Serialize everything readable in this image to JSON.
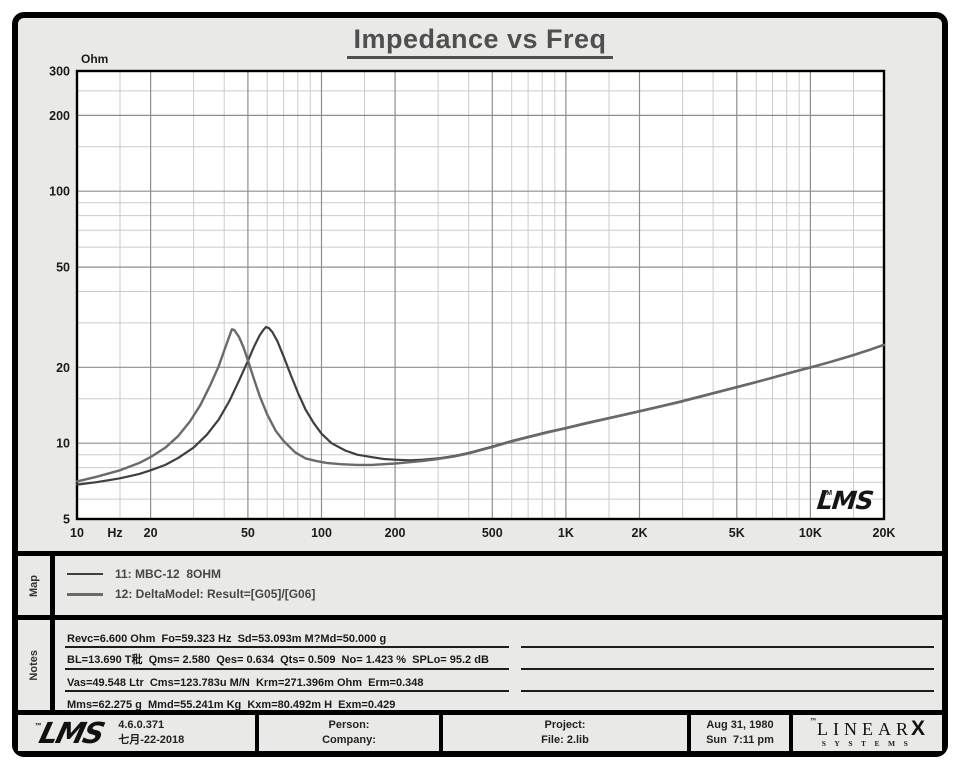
{
  "title": "Impedance vs Freq",
  "chart_data": {
    "type": "line",
    "title": "Impedance vs Freq",
    "ylabel": "Ohm",
    "x_unit": "Hz",
    "x_scale": "log",
    "y_scale": "log",
    "xlim": [
      10,
      20000
    ],
    "ylim": [
      5,
      300
    ],
    "grid": "on",
    "watermark": "LMS",
    "watermark_tm": "TM",
    "x_major_ticks": [
      {
        "f": 10,
        "label": "10"
      },
      {
        "f": 20,
        "label": "20"
      },
      {
        "f": 50,
        "label": "50"
      },
      {
        "f": 100,
        "label": "100"
      },
      {
        "f": 200,
        "label": "200"
      },
      {
        "f": 500,
        "label": "500"
      },
      {
        "f": 1000,
        "label": "1K"
      },
      {
        "f": 2000,
        "label": "2K"
      },
      {
        "f": 5000,
        "label": "5K"
      },
      {
        "f": 10000,
        "label": "10K"
      },
      {
        "f": 20000,
        "label": "20K"
      }
    ],
    "x_minor_ticks": [
      15,
      30,
      40,
      60,
      70,
      80,
      90,
      150,
      300,
      400,
      600,
      700,
      800,
      900,
      1500,
      3000,
      4000,
      6000,
      7000,
      8000,
      9000,
      15000
    ],
    "y_major_ticks": [
      {
        "v": 300,
        "label": "300"
      },
      {
        "v": 200,
        "label": "200"
      },
      {
        "v": 100,
        "label": "100"
      },
      {
        "v": 50,
        "label": "50"
      },
      {
        "v": 20,
        "label": "20"
      },
      {
        "v": 10,
        "label": "10"
      },
      {
        "v": 5,
        "label": "5"
      }
    ],
    "y_minor_ticks": [
      6,
      7,
      8,
      9,
      15,
      30,
      40,
      60,
      70,
      80,
      90,
      150,
      250
    ],
    "series": [
      {
        "id": "11",
        "name": "11: MBC-12  8OHM",
        "color": "#3f3f3f",
        "width": 2.2,
        "points": [
          [
            10,
            6.85
          ],
          [
            12,
            7.0
          ],
          [
            15,
            7.25
          ],
          [
            18,
            7.55
          ],
          [
            20,
            7.8
          ],
          [
            23,
            8.2
          ],
          [
            26,
            8.75
          ],
          [
            30,
            9.6
          ],
          [
            34,
            10.8
          ],
          [
            38,
            12.4
          ],
          [
            42,
            14.7
          ],
          [
            46,
            17.7
          ],
          [
            50,
            21.2
          ],
          [
            53,
            24.2
          ],
          [
            56,
            26.9
          ],
          [
            58,
            28.2
          ],
          [
            59.3,
            28.9
          ],
          [
            61,
            28.6
          ],
          [
            63,
            27.6
          ],
          [
            66,
            25.4
          ],
          [
            70,
            22.1
          ],
          [
            75,
            18.6
          ],
          [
            80,
            15.9
          ],
          [
            86,
            13.6
          ],
          [
            93,
            12.0
          ],
          [
            100,
            10.9
          ],
          [
            110,
            10.0
          ],
          [
            125,
            9.35
          ],
          [
            140,
            9.0
          ],
          [
            160,
            8.8
          ],
          [
            180,
            8.65
          ],
          [
            200,
            8.6
          ],
          [
            230,
            8.55
          ],
          [
            260,
            8.6
          ],
          [
            300,
            8.7
          ],
          [
            350,
            8.9
          ],
          [
            400,
            9.15
          ],
          [
            500,
            9.7
          ],
          [
            600,
            10.2
          ],
          [
            700,
            10.6
          ],
          [
            850,
            11.1
          ],
          [
            1000,
            11.5
          ],
          [
            1200,
            12.0
          ],
          [
            1500,
            12.6
          ],
          [
            2000,
            13.4
          ],
          [
            2500,
            14.1
          ],
          [
            3000,
            14.7
          ],
          [
            4000,
            15.8
          ],
          [
            5000,
            16.7
          ],
          [
            6000,
            17.5
          ],
          [
            7000,
            18.2
          ],
          [
            8500,
            19.2
          ],
          [
            10000,
            20.0
          ],
          [
            12000,
            21.0
          ],
          [
            15000,
            22.4
          ],
          [
            17500,
            23.5
          ],
          [
            20000,
            24.6
          ]
        ]
      },
      {
        "id": "12",
        "name": "12: DeltaModel: Result=[G05]/[G06]",
        "color": "#6a6a6a",
        "width": 2.4,
        "points": [
          [
            10,
            7.05
          ],
          [
            12,
            7.35
          ],
          [
            15,
            7.8
          ],
          [
            18,
            8.35
          ],
          [
            20,
            8.8
          ],
          [
            23,
            9.6
          ],
          [
            26,
            10.7
          ],
          [
            29,
            12.2
          ],
          [
            32,
            14.2
          ],
          [
            35,
            16.9
          ],
          [
            38,
            20.2
          ],
          [
            40,
            23.3
          ],
          [
            42,
            26.6
          ],
          [
            43,
            28.3
          ],
          [
            44,
            28.1
          ],
          [
            46,
            26.4
          ],
          [
            48,
            24.0
          ],
          [
            50,
            21.3
          ],
          [
            53,
            17.9
          ],
          [
            56,
            15.3
          ],
          [
            60,
            13.0
          ],
          [
            65,
            11.2
          ],
          [
            70,
            10.2
          ],
          [
            78,
            9.2
          ],
          [
            86,
            8.7
          ],
          [
            95,
            8.5
          ],
          [
            105,
            8.35
          ],
          [
            120,
            8.25
          ],
          [
            140,
            8.2
          ],
          [
            160,
            8.2
          ],
          [
            180,
            8.25
          ],
          [
            200,
            8.3
          ],
          [
            230,
            8.4
          ],
          [
            260,
            8.5
          ],
          [
            300,
            8.65
          ],
          [
            350,
            8.85
          ],
          [
            400,
            9.1
          ],
          [
            500,
            9.65
          ],
          [
            600,
            10.15
          ],
          [
            700,
            10.55
          ],
          [
            850,
            11.05
          ],
          [
            1000,
            11.45
          ],
          [
            1200,
            11.95
          ],
          [
            1500,
            12.55
          ],
          [
            2000,
            13.35
          ],
          [
            2500,
            14.05
          ],
          [
            3000,
            14.65
          ],
          [
            4000,
            15.75
          ],
          [
            5000,
            16.65
          ],
          [
            6000,
            17.45
          ],
          [
            7000,
            18.15
          ],
          [
            8500,
            19.15
          ],
          [
            10000,
            19.95
          ],
          [
            12000,
            20.95
          ],
          [
            15000,
            22.35
          ],
          [
            17500,
            23.45
          ],
          [
            20000,
            24.55
          ]
        ]
      }
    ]
  },
  "map": {
    "label": "Map",
    "entries": [
      {
        "id": "11",
        "name": "11: MBC-12  8OHM",
        "color": "#3f3f3f",
        "thickness": 2
      },
      {
        "id": "12",
        "name": "12: DeltaModel: Result=[G05]/[G06]",
        "color": "#6a6a6a",
        "thickness": 3
      }
    ]
  },
  "notes": {
    "label": "Notes",
    "lines": [
      "Revc=6.600 Ohm  Fo=59.323 Hz  Sd=53.093m M?Md=50.000 g",
      "BL=13.690 T秕  Qms= 2.580  Qes= 0.634  Qts= 0.509  No= 1.423 %  SPLo= 95.2 dB",
      "Vas=49.548 Ltr  Cms=123.783u M/N  Krm=271.396m Ohm  Erm=0.348",
      "Mms=62.275 g  Mmd=55.241m Kg  Kxm=80.492m H  Exm=0.429"
    ]
  },
  "footer": {
    "logo": "LMS",
    "logo_tm": "™",
    "version": "4.6.0.371",
    "date_generated": "七月-22-2018",
    "person_label": "Person:",
    "company_label": "Company:",
    "project_label": "Project:",
    "file_label": "File: 2.lib",
    "print_date": "Aug 31, 1980",
    "print_time": "Sun  7:11 pm",
    "brand": {
      "tm": "™",
      "linear": "LINEAR",
      "x": "X",
      "systems": "SYSTEMS"
    }
  }
}
